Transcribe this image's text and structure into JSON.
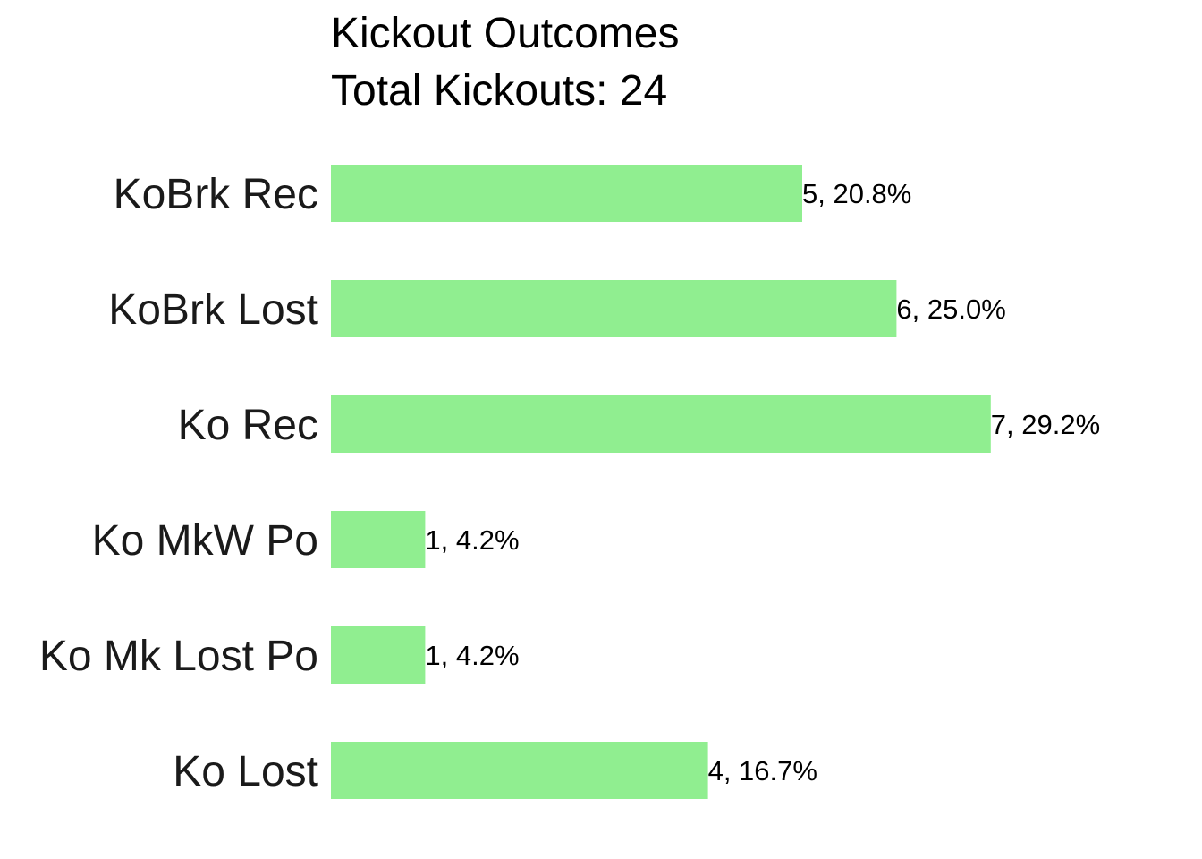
{
  "chart_data": {
    "type": "bar",
    "orientation": "horizontal",
    "title": "Kickout Outcomes",
    "subtitle": "Total Kickouts: 24",
    "xlabel": "",
    "ylabel": "",
    "grid": false,
    "legend": "none",
    "bar_color": "#90ee90",
    "xlim": [
      0,
      7
    ],
    "categories": [
      "KoBrk Rec",
      "KoBrk Lost",
      "Ko Rec",
      "Ko MkW Po",
      "Ko Mk Lost Po",
      "Ko Lost"
    ],
    "values": [
      5,
      6,
      7,
      1,
      1,
      4
    ],
    "data_labels": [
      "5, 20.8%",
      "6, 25.0%",
      "7, 29.2%",
      "1, 4.2%",
      "1, 4.2%",
      "4, 16.7%"
    ]
  }
}
